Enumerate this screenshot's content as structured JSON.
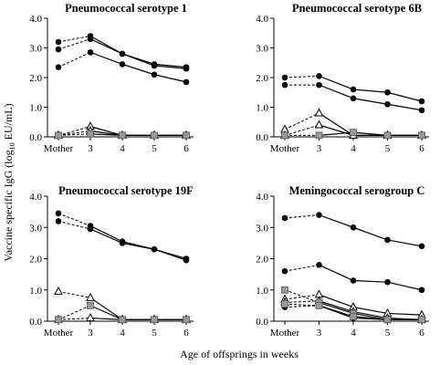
{
  "figure": {
    "ylabel": "Vaccine specific IgG (log",
    "ylabel_sub": "10",
    "ylabel_end": " EU/mL)",
    "xlabel": "Age of offsprings in weeks"
  },
  "chart_data": [
    {
      "type": "line",
      "title": "Pneumococcal serotype 1",
      "categories": [
        "Mother",
        "3",
        "4",
        "5",
        "6"
      ],
      "ylim": [
        0,
        4
      ],
      "yticks": [
        "0.0",
        "1.0",
        "2.0",
        "3.0",
        "4.0"
      ],
      "series": [
        {
          "marker": "circle",
          "values": [
            3.2,
            3.4,
            2.8,
            2.45,
            2.35
          ]
        },
        {
          "marker": "circle",
          "values": [
            2.95,
            3.3,
            2.8,
            2.4,
            2.3
          ]
        },
        {
          "marker": "circle",
          "values": [
            2.35,
            2.85,
            2.45,
            2.1,
            1.85
          ]
        },
        {
          "marker": "triangle",
          "values": [
            0.05,
            0.35,
            0.05,
            0.05,
            0.05
          ]
        },
        {
          "marker": "triangle",
          "values": [
            0.05,
            0.2,
            0.05,
            0.05,
            0.05
          ]
        },
        {
          "marker": "square",
          "values": [
            0.05,
            0.1,
            0.05,
            0.05,
            0.05
          ]
        }
      ]
    },
    {
      "type": "line",
      "title": "Pneumococcal serotype 6B",
      "categories": [
        "Mother",
        "3",
        "4",
        "5",
        "6"
      ],
      "ylim": [
        0,
        4
      ],
      "yticks": [
        "0.0",
        "1.0",
        "2.0",
        "3.0",
        "4.0"
      ],
      "series": [
        {
          "marker": "circle",
          "values": [
            2.0,
            2.05,
            1.6,
            1.5,
            1.2
          ]
        },
        {
          "marker": "circle",
          "values": [
            1.75,
            1.75,
            1.3,
            1.1,
            0.9
          ]
        },
        {
          "marker": "triangle",
          "values": [
            0.25,
            0.8,
            0.05,
            0.05,
            0.05
          ]
        },
        {
          "marker": "triangle",
          "values": [
            0.05,
            0.4,
            0.05,
            0.05,
            0.05
          ]
        },
        {
          "marker": "square",
          "values": [
            0.05,
            0.05,
            0.15,
            0.05,
            0.05
          ]
        }
      ]
    },
    {
      "type": "line",
      "title": "Pneumococcal serotype 19F",
      "categories": [
        "Mother",
        "3",
        "4",
        "5",
        "6"
      ],
      "ylim": [
        0,
        4
      ],
      "yticks": [
        "0.0",
        "1.0",
        "2.0",
        "3.0",
        "4.0"
      ],
      "series": [
        {
          "marker": "circle",
          "values": [
            3.45,
            3.05,
            2.55,
            2.3,
            2.0
          ]
        },
        {
          "marker": "circle",
          "values": [
            3.2,
            2.95,
            2.5,
            2.3,
            1.95
          ]
        },
        {
          "marker": "triangle",
          "values": [
            0.95,
            0.75,
            0.05,
            0.05,
            0.05
          ]
        },
        {
          "marker": "triangle",
          "values": [
            0.05,
            0.1,
            0.05,
            0.05,
            0.05
          ]
        },
        {
          "marker": "square",
          "values": [
            0.05,
            0.5,
            0.05,
            0.05,
            0.05
          ]
        }
      ]
    },
    {
      "type": "line",
      "title": "Meningococcal serogroup C",
      "categories": [
        "Mother",
        "3",
        "4",
        "5",
        "6"
      ],
      "ylim": [
        0,
        4
      ],
      "yticks": [
        "0.0",
        "1.0",
        "2.0",
        "3.0",
        "4.0"
      ],
      "series": [
        {
          "marker": "circle",
          "values": [
            3.3,
            3.4,
            3.0,
            2.6,
            2.4
          ]
        },
        {
          "marker": "circle",
          "values": [
            1.6,
            1.8,
            1.3,
            1.25,
            1.0
          ]
        },
        {
          "marker": "circle",
          "values": [
            0.45,
            0.5,
            0.1,
            0.05,
            0.05
          ]
        },
        {
          "marker": "triangle",
          "values": [
            0.7,
            0.85,
            0.45,
            0.25,
            0.2
          ]
        },
        {
          "marker": "triangle",
          "values": [
            0.6,
            0.65,
            0.3,
            0.1,
            0.05
          ]
        },
        {
          "marker": "square",
          "values": [
            1.0,
            0.6,
            0.25,
            0.05,
            0.05
          ]
        },
        {
          "marker": "square",
          "values": [
            0.55,
            0.5,
            0.15,
            0.05,
            0.05
          ]
        }
      ]
    }
  ]
}
